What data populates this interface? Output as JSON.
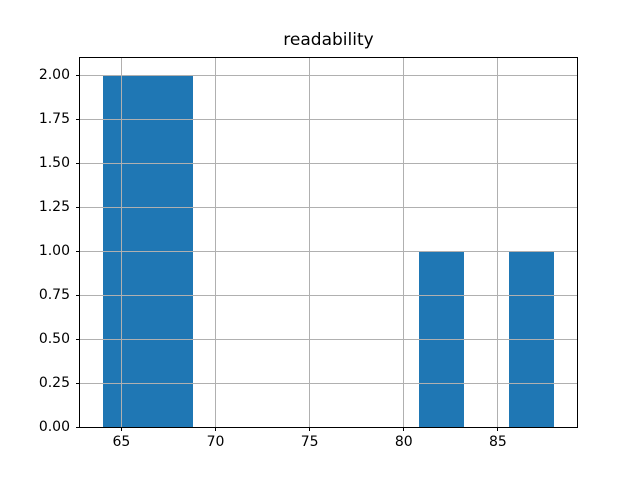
{
  "chart_data": {
    "type": "bar",
    "subtype": "histogram",
    "title": "readability",
    "xlabel": "",
    "ylabel": "",
    "bin_edges": [
      64.0,
      66.4,
      68.8,
      71.2,
      73.6,
      76.0,
      78.4,
      80.8,
      83.2,
      85.6,
      88.0
    ],
    "counts": [
      2,
      2,
      0,
      0,
      0,
      0,
      0,
      1,
      0,
      1
    ],
    "xlim": [
      62.8,
      89.2
    ],
    "ylim": [
      0,
      2.1
    ],
    "xtick_labels": [
      "65",
      "70",
      "75",
      "80",
      "85"
    ],
    "ytick_labels": [
      "0.00",
      "0.25",
      "0.50",
      "0.75",
      "1.00",
      "1.25",
      "1.50",
      "1.75",
      "2.00"
    ],
    "grid": true,
    "legend_position": "none",
    "bar_color": "#1f77b4",
    "grid_color": "#b0b0b0",
    "axis_color": "#000000",
    "background_color": "#ffffff"
  }
}
